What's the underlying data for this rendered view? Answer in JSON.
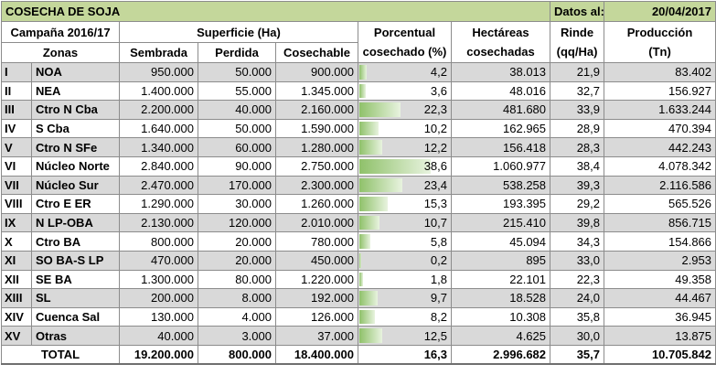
{
  "title": "COSECHA DE SOJA",
  "date_label": "Datos al:",
  "date_value": "20/04/2017",
  "headers": {
    "campaign": "Campaña 2016/17",
    "superficie": "Superficie (Ha)",
    "porcentual_1": "Porcentual",
    "porcentual_2": "cosechado (%)",
    "hectareas_1": "Hectáreas",
    "hectareas_2": "cosechadas",
    "rinde_1": "Rinde",
    "rinde_2": "(qq/Ha)",
    "produccion_1": "Producción",
    "produccion_2": "(Tn)",
    "zonas": "Zonas",
    "sembrada": "Sembrada",
    "perdida": "Perdida",
    "cosechable": "Cosechable"
  },
  "rows": [
    {
      "id": "I",
      "zona": "NOA",
      "sembrada": "950.000",
      "perdida": "50.000",
      "cosechable": "900.000",
      "pct": "4,2",
      "pct_value": 4.2,
      "hectareas": "38.013",
      "rinde": "21,9",
      "produccion": "83.402"
    },
    {
      "id": "II",
      "zona": "NEA",
      "sembrada": "1.400.000",
      "perdida": "55.000",
      "cosechable": "1.345.000",
      "pct": "3,6",
      "pct_value": 3.6,
      "hectareas": "48.016",
      "rinde": "32,7",
      "produccion": "156.927"
    },
    {
      "id": "III",
      "zona": "Ctro N Cba",
      "sembrada": "2.200.000",
      "perdida": "40.000",
      "cosechable": "2.160.000",
      "pct": "22,3",
      "pct_value": 22.3,
      "hectareas": "481.680",
      "rinde": "33,9",
      "produccion": "1.633.244"
    },
    {
      "id": "IV",
      "zona": "S Cba",
      "sembrada": "1.640.000",
      "perdida": "50.000",
      "cosechable": "1.590.000",
      "pct": "10,2",
      "pct_value": 10.2,
      "hectareas": "162.965",
      "rinde": "28,9",
      "produccion": "470.394"
    },
    {
      "id": "V",
      "zona": "Ctro N SFe",
      "sembrada": "1.340.000",
      "perdida": "60.000",
      "cosechable": "1.280.000",
      "pct": "12,2",
      "pct_value": 12.2,
      "hectareas": "156.418",
      "rinde": "28,3",
      "produccion": "442.243"
    },
    {
      "id": "VI",
      "zona": "Núcleo Norte",
      "sembrada": "2.840.000",
      "perdida": "90.000",
      "cosechable": "2.750.000",
      "pct": "38,6",
      "pct_value": 38.6,
      "hectareas": "1.060.977",
      "rinde": "38,4",
      "produccion": "4.078.342"
    },
    {
      "id": "VII",
      "zona": "Núcleo Sur",
      "sembrada": "2.470.000",
      "perdida": "170.000",
      "cosechable": "2.300.000",
      "pct": "23,4",
      "pct_value": 23.4,
      "hectareas": "538.258",
      "rinde": "39,3",
      "produccion": "2.116.586"
    },
    {
      "id": "VIII",
      "zona": "Ctro E ER",
      "sembrada": "1.290.000",
      "perdida": "30.000",
      "cosechable": "1.260.000",
      "pct": "15,3",
      "pct_value": 15.3,
      "hectareas": "193.395",
      "rinde": "29,2",
      "produccion": "565.526"
    },
    {
      "id": "IX",
      "zona": "N LP-OBA",
      "sembrada": "2.130.000",
      "perdida": "120.000",
      "cosechable": "2.010.000",
      "pct": "10,7",
      "pct_value": 10.7,
      "hectareas": "215.410",
      "rinde": "39,8",
      "produccion": "856.715"
    },
    {
      "id": "X",
      "zona": "Ctro BA",
      "sembrada": "800.000",
      "perdida": "20.000",
      "cosechable": "780.000",
      "pct": "5,8",
      "pct_value": 5.8,
      "hectareas": "45.094",
      "rinde": "34,3",
      "produccion": "154.866"
    },
    {
      "id": "XI",
      "zona": "SO BA-S LP",
      "sembrada": "470.000",
      "perdida": "20.000",
      "cosechable": "450.000",
      "pct": "0,2",
      "pct_value": 0.2,
      "hectareas": "895",
      "rinde": "33,0",
      "produccion": "2.953"
    },
    {
      "id": "XII",
      "zona": "SE BA",
      "sembrada": "1.300.000",
      "perdida": "80.000",
      "cosechable": "1.220.000",
      "pct": "1,8",
      "pct_value": 1.8,
      "hectareas": "22.101",
      "rinde": "22,3",
      "produccion": "49.358"
    },
    {
      "id": "XIII",
      "zona": "SL",
      "sembrada": "200.000",
      "perdida": "8.000",
      "cosechable": "192.000",
      "pct": "9,7",
      "pct_value": 9.7,
      "hectareas": "18.528",
      "rinde": "24,0",
      "produccion": "44.467"
    },
    {
      "id": "XIV",
      "zona": "Cuenca Sal",
      "sembrada": "130.000",
      "perdida": "4.000",
      "cosechable": "126.000",
      "pct": "8,2",
      "pct_value": 8.2,
      "hectareas": "10.308",
      "rinde": "35,8",
      "produccion": "36.945"
    },
    {
      "id": "XV",
      "zona": "Otras",
      "sembrada": "40.000",
      "perdida": "3.000",
      "cosechable": "37.000",
      "pct": "12,5",
      "pct_value": 12.5,
      "hectareas": "4.625",
      "rinde": "30,0",
      "produccion": "13.875"
    }
  ],
  "total": {
    "label": "TOTAL",
    "sembrada": "19.200.000",
    "perdida": "800.000",
    "cosechable": "18.400.000",
    "pct": "16,3",
    "hectareas": "2.996.682",
    "rinde": "35,7",
    "produccion": "10.705.842"
  },
  "colors": {
    "title_bg": "#c4d79b",
    "stripe": "#d9d9d9",
    "databar": "#8fc16a"
  }
}
